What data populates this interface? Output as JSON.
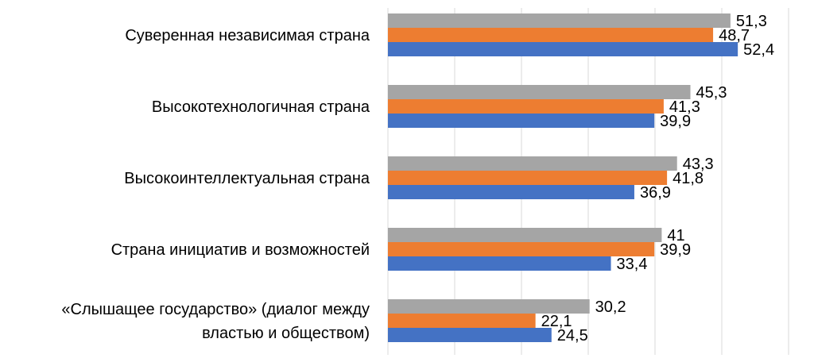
{
  "chart_data": {
    "type": "bar",
    "orientation": "horizontal",
    "categories": [
      [
        "Суверенная независимая страна"
      ],
      [
        "Высокотехнологичная страна"
      ],
      [
        "Высокоинтеллектуальная страна"
      ],
      [
        "Страна инициатив и возможностей"
      ],
      [
        "«Слышащее государство» (диалог между",
        "властью и обществом)"
      ]
    ],
    "series": [
      {
        "color": "#a5a5a5",
        "values": [
          51.3,
          45.3,
          43.3,
          41,
          30.2
        ],
        "labels": [
          "51,3",
          "45,3",
          "43,3",
          "41",
          "30,2"
        ]
      },
      {
        "color": "#ed7d31",
        "values": [
          48.7,
          41.3,
          41.8,
          39.9,
          22.1
        ],
        "labels": [
          "48,7",
          "41,3",
          "41,8",
          "39,9",
          "22,1"
        ]
      },
      {
        "color": "#4472c4",
        "values": [
          52.4,
          39.9,
          36.9,
          33.4,
          24.5
        ],
        "labels": [
          "52,4",
          "39,9",
          "36,9",
          "33,4",
          "24,5"
        ]
      }
    ],
    "xlim": [
      0,
      60
    ],
    "gridlines": [
      0,
      10,
      20,
      30,
      40,
      50,
      60
    ],
    "grid": true,
    "legend": "none"
  }
}
